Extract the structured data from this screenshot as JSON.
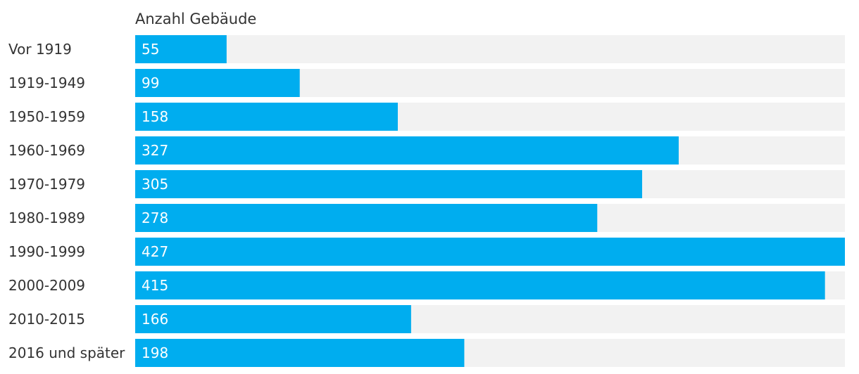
{
  "chart_data": {
    "type": "bar",
    "orientation": "horizontal",
    "title": "Anzahl Gebäude",
    "categories": [
      "Vor 1919",
      "1919-1949",
      "1950-1959",
      "1960-1969",
      "1970-1979",
      "1980-1989",
      "1990-1999",
      "2000-2009",
      "2010-2015",
      "2016 und später"
    ],
    "values": [
      55,
      99,
      158,
      327,
      305,
      278,
      427,
      415,
      166,
      198
    ],
    "xlim": [
      0,
      427
    ],
    "grid": false,
    "legend": "none",
    "colors": {
      "bar": "#00adef",
      "track": "#f2f2f2",
      "label_text": "#333333",
      "value_text": "#ffffff"
    }
  }
}
